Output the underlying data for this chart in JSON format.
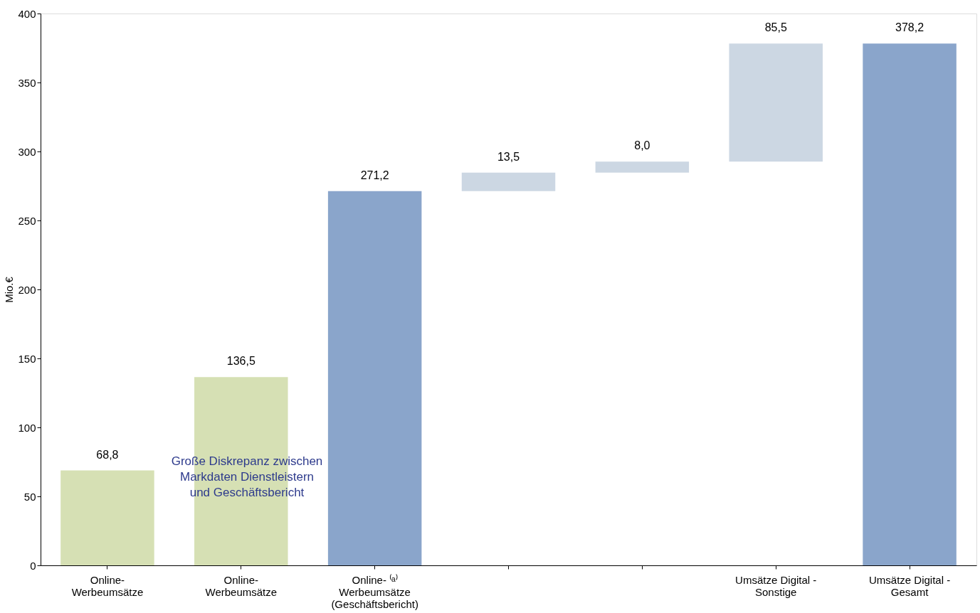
{
  "chart_data": {
    "type": "bar",
    "ylabel": "Mio.€",
    "categories": [
      "Online-\nWerbeumsätze",
      "Online-\nWerbeumsätze",
      "Online- ⁽ᵃ⁾\nWerbeumsätze\n(Geschäftsbericht)",
      null,
      null,
      "Umsätze Digital -\nSonstige",
      "Umsätze Digital  -\nGesamt"
    ],
    "values": [
      68.8,
      136.5,
      271.2,
      13.5,
      8.0,
      85.5,
      378.2
    ],
    "base": [
      0,
      0,
      0,
      271.2,
      284.7,
      292.7,
      0
    ],
    "colors": [
      "#d6e0b4",
      "#d6e0b4",
      "#8aa5cb",
      "#ccd7e3",
      "#ccd7e3",
      "#ccd7e3",
      "#8aa5cb"
    ],
    "value_labels": [
      "68,8",
      "136,5",
      "271,2",
      "13,5",
      "8,0",
      "85,5",
      "378,2"
    ],
    "ylim": [
      0,
      400
    ],
    "yticks": [
      0,
      50,
      100,
      150,
      200,
      250,
      300,
      350,
      400
    ],
    "grid": false,
    "legend": false,
    "annotations": [
      "Große Diskrepanz zwischen\nMarkdaten Dienstleistern\nund Geschäftsbericht"
    ]
  }
}
